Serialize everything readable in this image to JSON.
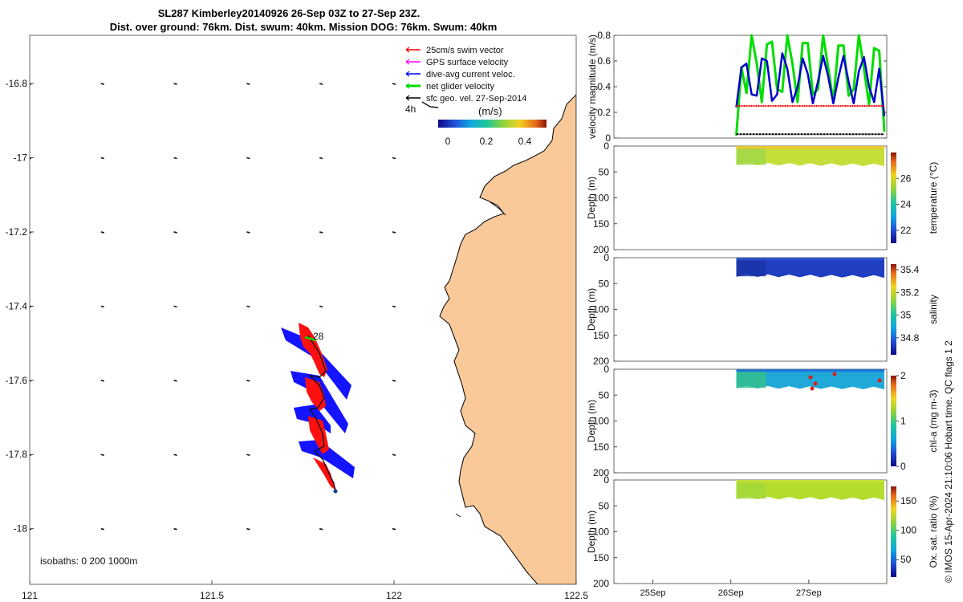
{
  "title": {
    "line1": "SL287 Kimberley20140926 26-Sep 03Z to 27-Sep 23Z.",
    "line2": "Dist. over ground: 76km. Dist. swum: 40km. Mission DOG: 76km. Swum: 40km"
  },
  "chart_data": [
    {
      "type": "map",
      "name": "glider-track-map",
      "xlim": [
        121,
        122.5
      ],
      "ylim": [
        -18.15,
        -16.67
      ],
      "x_ticks": [
        "121",
        "121.5",
        "122",
        "122.5"
      ],
      "y_ticks": [
        "-16.8",
        "-17",
        "-17.2",
        "-17.4",
        "-17.6",
        "-17.8",
        "-18"
      ],
      "legend": [
        {
          "label": "25cm/s swim vector",
          "color": "#ff0000"
        },
        {
          "label": "GPS surface velocity",
          "color": "#ff00ff"
        },
        {
          "label": "dive-avg current veloc.",
          "color": "#0000ff"
        },
        {
          "label": "net glider velocity",
          "color": "#00dd00"
        },
        {
          "label": "sfc geo. vel. 27-Sep-2014",
          "color": "#000000"
        }
      ],
      "scale_label": "4h",
      "colorbar": {
        "title": "(m/s)",
        "ticks": [
          "0",
          "0.2",
          "0.4"
        ]
      },
      "track_label": "28",
      "isobaths_label": "isobaths: 0   200  1000m",
      "land_color": "#f9c999"
    },
    {
      "type": "line",
      "name": "velocity-magnitude",
      "ylabel": "velocity magnitude (m/s)",
      "ylim": [
        0,
        0.8
      ],
      "y_ticks": [
        "0",
        "0.2",
        "0.4",
        "0.6",
        "0.8"
      ],
      "x_range_days": [
        24.5,
        28.0
      ],
      "data_start_day": 26.07,
      "series": [
        {
          "name": "net glider velocity",
          "color": "#00dd00",
          "values": [
            0.02,
            0.55,
            0.35,
            0.81,
            0.58,
            0.28,
            0.73,
            0.75,
            0.38,
            0.36,
            0.82,
            0.58,
            0.28,
            0.74,
            0.74,
            0.34,
            0.38,
            0.84,
            0.55,
            0.28,
            0.72,
            0.72,
            0.33,
            0.38,
            0.8,
            0.54,
            0.26,
            0.7,
            0.68,
            0.05
          ]
        },
        {
          "name": "dive-avg current veloc.",
          "color": "#0000cc",
          "values": [
            0.24,
            0.55,
            0.58,
            0.34,
            0.33,
            0.62,
            0.6,
            0.29,
            0.34,
            0.66,
            0.54,
            0.28,
            0.4,
            0.62,
            0.5,
            0.27,
            0.44,
            0.64,
            0.48,
            0.27,
            0.47,
            0.64,
            0.44,
            0.27,
            0.52,
            0.63,
            0.4,
            0.28,
            0.54,
            0.17
          ]
        },
        {
          "name": "25cm/s swim vector",
          "color": "#ff0000",
          "constant": 0.25
        },
        {
          "name": "surface velocity",
          "color": "#000000",
          "constant": 0.03
        }
      ]
    },
    {
      "type": "heatmap",
      "name": "temperature-section",
      "ylabel": "Depth (m)",
      "clabel": "temperature (°C)",
      "clim": [
        21,
        28
      ],
      "c_ticks": [
        "22",
        "24",
        "26"
      ],
      "y_ticks": [
        "0",
        "50",
        "100",
        "150",
        "200"
      ],
      "dominant_value": 25.5
    },
    {
      "type": "heatmap",
      "name": "salinity-section",
      "ylabel": "Depth (m)",
      "clabel": "salinity",
      "clim": [
        34.65,
        35.45
      ],
      "c_ticks": [
        "34.8",
        "35",
        "35.2",
        "35.4"
      ],
      "y_ticks": [
        "0",
        "50",
        "100",
        "150",
        "200"
      ],
      "dominant_value": 34.75
    },
    {
      "type": "heatmap",
      "name": "chla-section",
      "ylabel": "Depth (m)",
      "clabel": "chl-a (mg m-3)",
      "clim": [
        0,
        2
      ],
      "c_ticks": [
        "0",
        "1",
        "2"
      ],
      "y_ticks": [
        "0",
        "50",
        "100",
        "150",
        "200"
      ],
      "dominant_value": 0.6
    },
    {
      "type": "heatmap",
      "name": "oxygen-section",
      "ylabel": "Depth (m)",
      "clabel": "Ox. sat. ratio (%)",
      "clim": [
        20,
        175
      ],
      "c_ticks": [
        "50",
        "100",
        "150"
      ],
      "y_ticks": [
        "0",
        "50",
        "100",
        "150",
        "200"
      ],
      "dominant_value": 128
    }
  ],
  "x_day_ticks": [
    "25Sep",
    "26Sep",
    "27Sep"
  ],
  "credit": "© IMOS 15-Apr-2024 21:10:06 Hobart time. QC flags 1  2"
}
